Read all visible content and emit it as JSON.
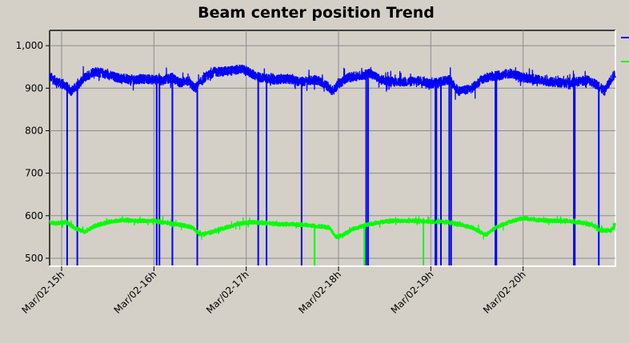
{
  "chart_data": {
    "type": "line",
    "title": "Beam center position Trend",
    "xlabel": "",
    "ylabel": "",
    "ylim": [
      483,
      1036
    ],
    "xlim": [
      14.87,
      21.0
    ],
    "x_tick_values": [
      15,
      16,
      17,
      18,
      19,
      20
    ],
    "x_tick_labels": [
      "Mar/02-15h",
      "Mar/02-16h",
      "Mar/02-17h",
      "Mar/02-18h",
      "Mar/02-19h",
      "Mar/02-20h"
    ],
    "y_tick_values": [
      500,
      600,
      700,
      800,
      900,
      1000
    ],
    "y_tick_labels": [
      "500",
      "600",
      "700",
      "800",
      "900",
      "1,000"
    ],
    "grid": true,
    "legend_placement": "right",
    "series": [
      {
        "color": "#0000ff",
        "noise": 11,
        "x": [
          14.87,
          14.95,
          15.05,
          15.1,
          15.17,
          15.25,
          15.35,
          15.45,
          15.6,
          15.75,
          15.9,
          16.0,
          16.1,
          16.2,
          16.28,
          16.35,
          16.45,
          16.55,
          16.65,
          16.8,
          16.95,
          17.05,
          17.15,
          17.3,
          17.45,
          17.6,
          17.75,
          17.85,
          17.94,
          18.0,
          18.1,
          18.25,
          18.35,
          18.45,
          18.6,
          18.75,
          18.9,
          19.0,
          19.1,
          19.2,
          19.3,
          19.45,
          19.55,
          19.65,
          19.75,
          19.85,
          20.0,
          20.15,
          20.3,
          20.45,
          20.6,
          20.7,
          20.8,
          20.88,
          20.95,
          21.0
        ],
        "y": [
          928,
          915,
          905,
          893,
          905,
          925,
          940,
          935,
          925,
          920,
          922,
          920,
          918,
          925,
          912,
          918,
          900,
          925,
          938,
          940,
          945,
          935,
          925,
          920,
          922,
          915,
          920,
          910,
          893,
          910,
          925,
          930,
          935,
          920,
          915,
          915,
          918,
          910,
          915,
          920,
          893,
          900,
          920,
          928,
          930,
          935,
          925,
          920,
          915,
          912,
          915,
          920,
          908,
          893,
          920,
          935
        ],
        "drops": [
          15.06,
          15.17,
          16.03,
          16.06,
          16.2,
          16.47,
          17.13,
          17.22,
          17.6,
          18.3,
          18.32,
          19.05,
          19.06,
          19.11,
          19.2,
          19.22,
          19.7,
          19.71,
          20.55,
          20.56,
          20.82
        ],
        "drop_floor": 483
      },
      {
        "color": "#00ff00",
        "noise": 5,
        "x": [
          14.87,
          14.95,
          15.05,
          15.15,
          15.25,
          15.35,
          15.5,
          15.65,
          15.8,
          16.0,
          16.15,
          16.3,
          16.42,
          16.5,
          16.6,
          16.75,
          16.9,
          17.05,
          17.2,
          17.35,
          17.5,
          17.65,
          17.8,
          17.9,
          17.97,
          18.05,
          18.15,
          18.3,
          18.45,
          18.6,
          18.8,
          19.0,
          19.2,
          19.35,
          19.45,
          19.55,
          19.6,
          19.7,
          19.85,
          20.0,
          20.15,
          20.3,
          20.45,
          20.6,
          20.75,
          20.85,
          20.95,
          21.0
        ],
        "y": [
          585,
          582,
          585,
          570,
          562,
          575,
          585,
          590,
          588,
          588,
          582,
          578,
          572,
          555,
          560,
          570,
          580,
          585,
          583,
          580,
          580,
          578,
          575,
          572,
          550,
          555,
          568,
          578,
          585,
          588,
          588,
          586,
          585,
          578,
          572,
          560,
          555,
          572,
          585,
          595,
          590,
          588,
          588,
          585,
          578,
          565,
          565,
          580
        ],
        "drops": [
          17.74,
          18.28,
          18.92
        ],
        "drop_floor": 483
      }
    ]
  }
}
